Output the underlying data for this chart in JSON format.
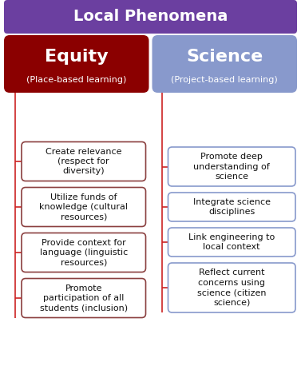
{
  "title": "Local Phenomena",
  "title_bg": "#6B3FA0",
  "title_color": "#FFFFFF",
  "left_header": "Equity",
  "left_subheader": "(Place-based learning)",
  "left_header_bg": "#8B0000",
  "left_header_color": "#FFFFFF",
  "right_header": "Science",
  "right_subheader": "(Project-based learning)",
  "right_header_bg": "#8899CC",
  "right_header_color": "#FFFFFF",
  "left_items": [
    "Create relevance\n(respect for\ndiversity)",
    "Utilize funds of\nknowledge (cultural\nresources)",
    "Provide context for\nlanguage (linguistic\nresources)",
    "Promote\nparticipation of all\nstudents (inclusion)"
  ],
  "right_items": [
    "Promote deep\nunderstanding of\nscience",
    "Integrate science\ndisciplines",
    "Link engineering to\nlocal context",
    "Reflect current\nconcerns using\nscience (citizen\nscience)"
  ],
  "left_item_border": "#8B4040",
  "right_item_border": "#8899CC",
  "left_item_bg": "#FFFFFF",
  "right_item_bg": "#FFFFFF",
  "connector_color": "#CC2222",
  "bg_color": "#FFFFFF",
  "title_fontsize": 14,
  "header_fontsize": 16,
  "subheader_fontsize": 8,
  "item_fontsize": 8
}
